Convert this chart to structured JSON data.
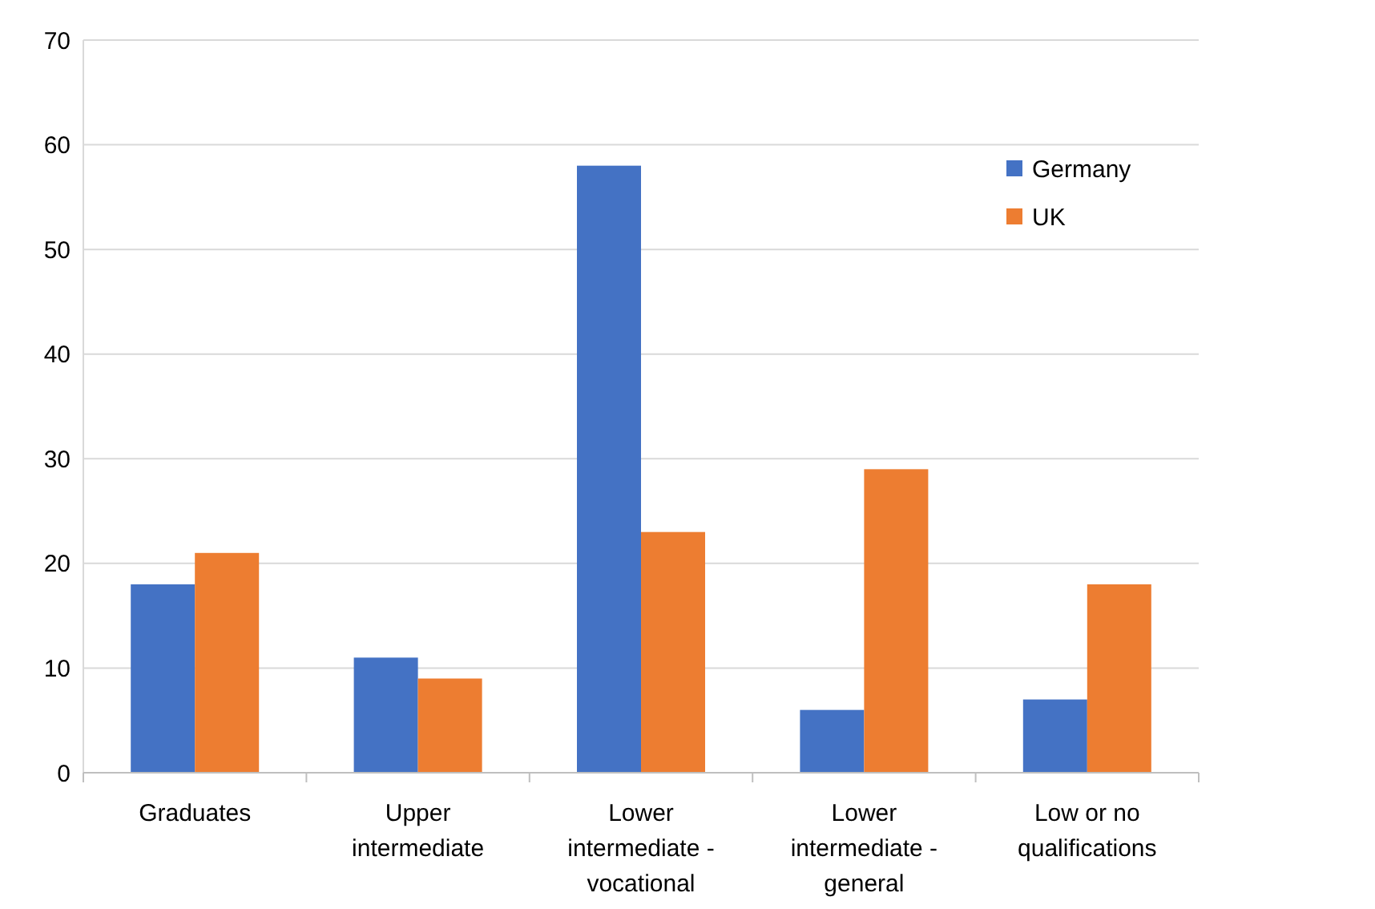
{
  "chart_data": {
    "type": "bar",
    "categories": [
      "Graduates",
      "Upper intermediate",
      "Lower intermediate - vocational",
      "Lower intermediate - general",
      "Low or no qualifications"
    ],
    "series": [
      {
        "name": "Germany",
        "color": "#4472c4",
        "values": [
          18,
          11,
          58,
          6,
          7
        ]
      },
      {
        "name": "UK",
        "color": "#ed7d31",
        "values": [
          21,
          9,
          23,
          29,
          18
        ]
      }
    ],
    "ylim": [
      0,
      70
    ],
    "yticks": [
      0,
      10,
      20,
      30,
      40,
      50,
      60,
      70
    ],
    "grid": "y",
    "legend": "top right"
  }
}
